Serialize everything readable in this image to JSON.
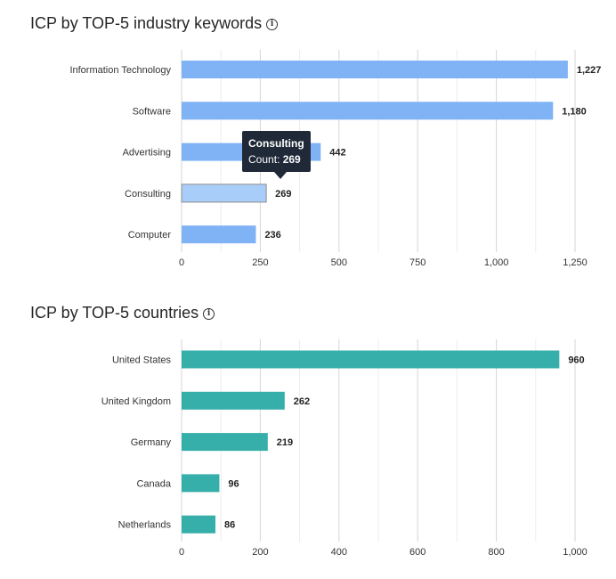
{
  "chart_data": [
    {
      "type": "bar",
      "orientation": "horizontal",
      "title": "ICP by TOP-5 industry keywords",
      "title_icon": "info-icon",
      "categories": [
        "Information Technology",
        "Software",
        "Advertising",
        "Consulting",
        "Computer"
      ],
      "values": [
        1227,
        1180,
        442,
        269,
        236
      ],
      "value_labels": [
        "1,227",
        "1,180",
        "442",
        "269",
        "236"
      ],
      "xlim": [
        0,
        1250
      ],
      "ticks": [
        0,
        250,
        500,
        750,
        1000,
        1250
      ],
      "tick_labels": [
        "0",
        "250",
        "500",
        "750",
        "1,000",
        "1,250"
      ],
      "grid": true,
      "bar_color": "#7fb3f5",
      "highlight_color": "#a9cdf9",
      "tooltip": {
        "category": "Consulting",
        "label": "Count:",
        "value": "269"
      }
    },
    {
      "type": "bar",
      "orientation": "horizontal",
      "title": "ICP by TOP-5 countries",
      "title_icon": "info-icon",
      "categories": [
        "United States",
        "United Kingdom",
        "Germany",
        "Canada",
        "Netherlands"
      ],
      "values": [
        960,
        262,
        219,
        96,
        86
      ],
      "value_labels": [
        "960",
        "262",
        "219",
        "96",
        "86"
      ],
      "xlim": [
        0,
        1000
      ],
      "ticks": [
        0,
        200,
        400,
        600,
        800,
        1000
      ],
      "tick_labels": [
        "0",
        "200",
        "400",
        "600",
        "800",
        "1,000"
      ],
      "grid": true,
      "bar_color": "#36aea9"
    }
  ]
}
